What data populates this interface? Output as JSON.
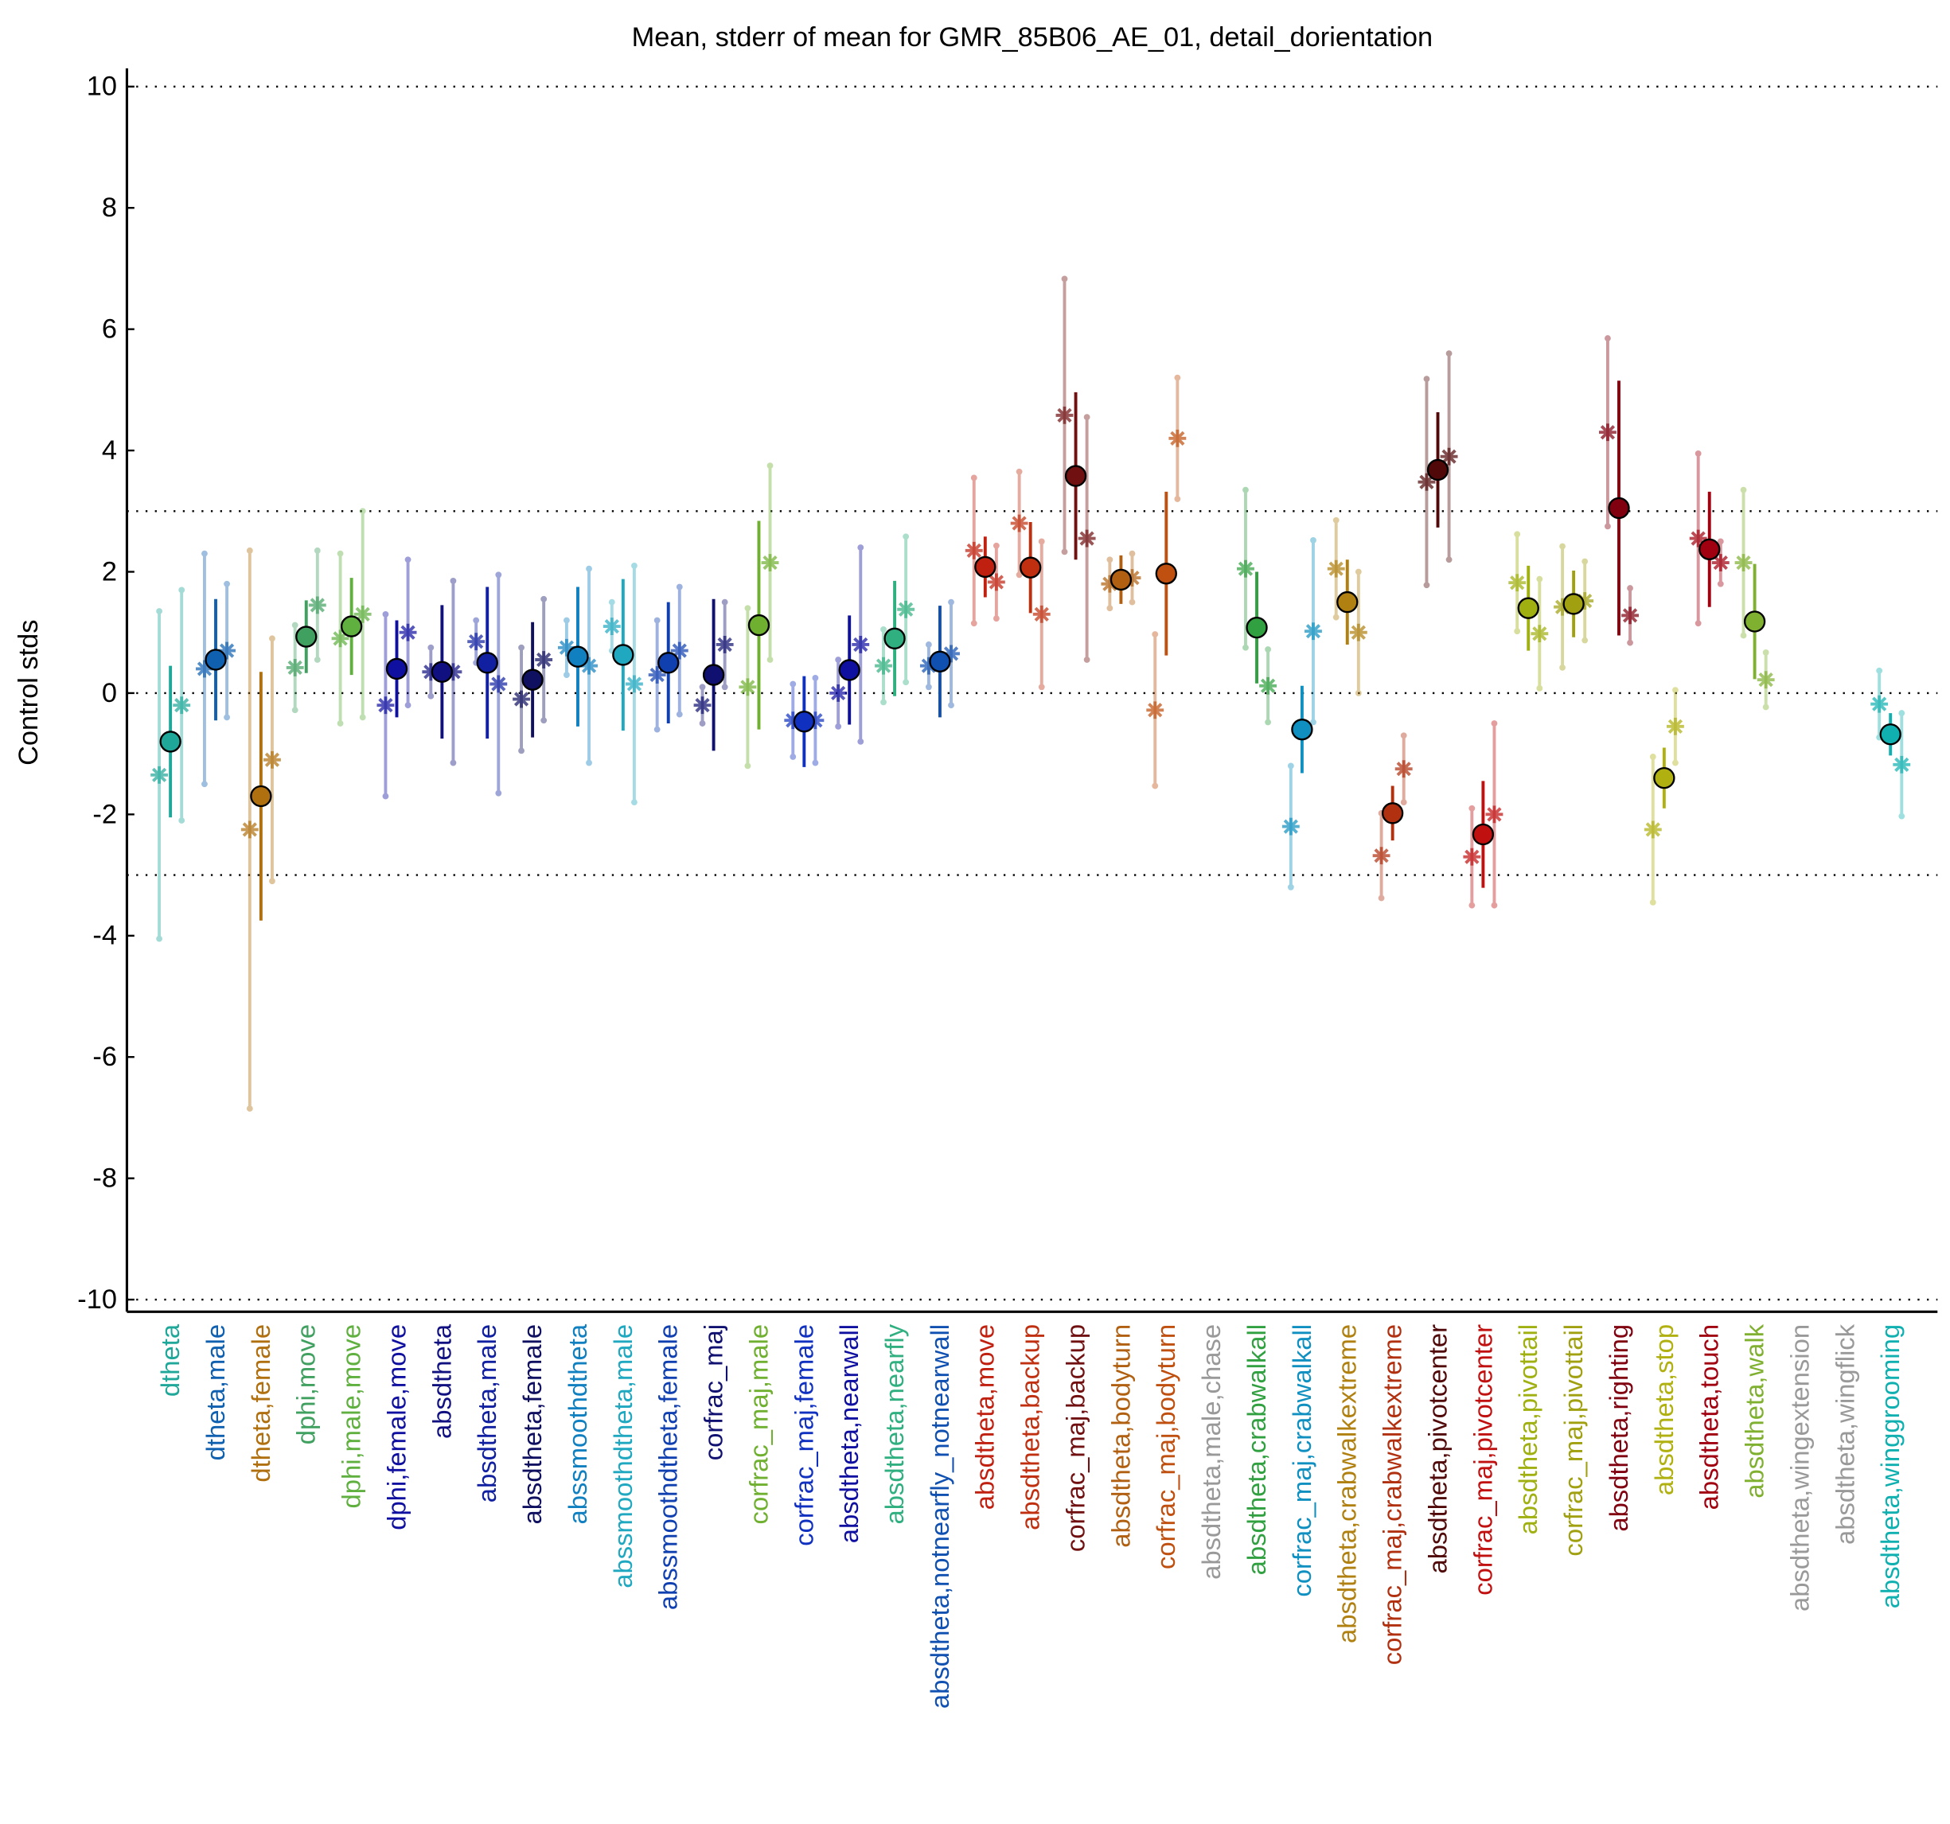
{
  "chart_data": {
    "type": "errorbar",
    "title": "Mean, stderr of mean for GMR_85B06_AE_01, detail_dorientation",
    "ylabel": "Control stds",
    "categories": [
      "dtheta",
      "dtheta,male",
      "dtheta,female",
      "dphi,move",
      "dphi,male,move",
      "dphi,female,move",
      "absdtheta",
      "absdtheta,male",
      "absdtheta,female",
      "abssmoothdtheta",
      "abssmoothdtheta,male",
      "abssmoothdtheta,female",
      "corfrac_maj",
      "corfrac_maj,male",
      "corfrac_maj,female",
      "absdtheta,nearwall",
      "absdtheta,nearfly",
      "absdtheta,notnearfly_notnearwall",
      "absdtheta,move",
      "absdtheta,backup",
      "corfrac_maj,backup",
      "absdtheta,bodyturn",
      "corfrac_maj,bodyturn",
      "absdtheta,male,chase",
      "absdtheta,crabwalkall",
      "corfrac_maj,crabwalkall",
      "absdtheta,crabwalkextreme",
      "corfrac_maj,crabwalkextreme",
      "absdtheta,pivotcenter",
      "corfrac_maj,pivotcenter",
      "absdtheta,pivottail",
      "corfrac_maj,pivottail",
      "absdtheta,righting",
      "absdtheta,stop",
      "absdtheta,touch",
      "absdtheta,walk",
      "absdtheta,wingextension",
      "absdtheta,wingflick",
      "absdtheta,winggrooming"
    ],
    "colors": [
      "#1fa89a",
      "#1060b0",
      "#b07010",
      "#40a060",
      "#60b040",
      "#1010a0",
      "#101080",
      "#1020a0",
      "#101060",
      "#1080c0",
      "#20a8c0",
      "#1040b0",
      "#101070",
      "#70b030",
      "#1030c0",
      "#1010a0",
      "#30b080",
      "#1050b0",
      "#c02010",
      "#c03010",
      "#701010",
      "#b06010",
      "#c05010",
      "#999999",
      "#30a040",
      "#1090c0",
      "#b08010",
      "#b03010",
      "#500808",
      "#c01010",
      "#a0b010",
      "#a0a010",
      "#800010",
      "#b0b010",
      "#a00010",
      "#80b030",
      "#999999",
      "#999999",
      "#10b0b0"
    ],
    "series": [
      {
        "marker": "circle",
        "values": [
          -0.8,
          0.55,
          -1.7,
          0.93,
          1.1,
          0.4,
          0.35,
          0.5,
          0.22,
          0.6,
          0.63,
          0.5,
          0.3,
          1.12,
          -0.47,
          0.38,
          0.9,
          0.52,
          2.08,
          2.07,
          3.58,
          1.87,
          1.97,
          null,
          1.08,
          -0.6,
          1.5,
          -1.98,
          3.68,
          -2.33,
          1.4,
          1.47,
          3.05,
          -1.4,
          2.37,
          1.18,
          null,
          null,
          -0.68
        ],
        "errors": [
          1.25,
          1.0,
          2.05,
          0.6,
          0.8,
          0.8,
          1.1,
          1.25,
          0.95,
          1.15,
          1.25,
          1.0,
          1.25,
          1.72,
          0.75,
          0.9,
          0.95,
          0.92,
          0.5,
          0.75,
          1.38,
          0.4,
          1.35,
          null,
          0.92,
          0.72,
          0.7,
          0.45,
          0.95,
          0.88,
          0.7,
          0.55,
          2.1,
          0.5,
          0.95,
          0.95,
          null,
          null,
          0.35
        ]
      },
      {
        "marker": "star",
        "values": [
          -1.35,
          0.4,
          -2.25,
          0.42,
          0.9,
          -0.2,
          0.35,
          0.85,
          -0.1,
          0.75,
          1.1,
          0.3,
          -0.2,
          0.1,
          -0.45,
          0.0,
          0.45,
          0.45,
          2.35,
          2.8,
          4.58,
          1.8,
          -0.28,
          null,
          2.05,
          -2.2,
          2.05,
          -2.68,
          3.48,
          -2.7,
          1.82,
          1.42,
          4.3,
          -2.25,
          2.55,
          2.15,
          null,
          null,
          -0.18
        ],
        "errors": [
          2.7,
          1.9,
          4.6,
          0.7,
          1.4,
          1.5,
          0.4,
          0.35,
          0.85,
          0.45,
          0.4,
          0.9,
          0.3,
          1.3,
          0.6,
          0.55,
          0.6,
          0.35,
          1.2,
          0.85,
          2.25,
          0.4,
          1.25,
          null,
          1.3,
          1.0,
          0.8,
          0.7,
          1.7,
          0.8,
          0.8,
          1.0,
          1.55,
          1.2,
          1.4,
          1.2,
          null,
          null,
          0.55
        ]
      },
      {
        "marker": "star",
        "values": [
          -0.2,
          0.7,
          -1.1,
          1.45,
          1.3,
          1.0,
          0.35,
          0.15,
          0.55,
          0.45,
          0.15,
          0.7,
          0.8,
          2.15,
          -0.45,
          0.8,
          1.38,
          0.65,
          1.83,
          1.3,
          2.55,
          1.9,
          4.2,
          null,
          0.12,
          1.02,
          1.0,
          -1.25,
          3.9,
          -2.0,
          0.98,
          1.52,
          1.28,
          -0.55,
          2.15,
          0.22,
          null,
          null,
          -1.18
        ],
        "errors": [
          1.9,
          1.1,
          2.0,
          0.9,
          1.7,
          1.2,
          1.5,
          1.8,
          1.0,
          1.6,
          1.95,
          1.05,
          0.7,
          1.6,
          0.7,
          1.6,
          1.2,
          0.85,
          0.6,
          1.2,
          2.0,
          0.4,
          1.0,
          null,
          0.6,
          1.5,
          1.0,
          0.55,
          1.7,
          1.5,
          0.9,
          0.65,
          0.45,
          0.6,
          0.35,
          0.45,
          null,
          null,
          0.85
        ]
      }
    ],
    "ylim": [
      -10.2,
      10.3
    ],
    "yticks": [
      -10,
      -8,
      -6,
      -4,
      -2,
      0,
      2,
      4,
      6,
      8,
      10
    ],
    "hlines": [
      -10,
      -3,
      0,
      3,
      10
    ]
  }
}
